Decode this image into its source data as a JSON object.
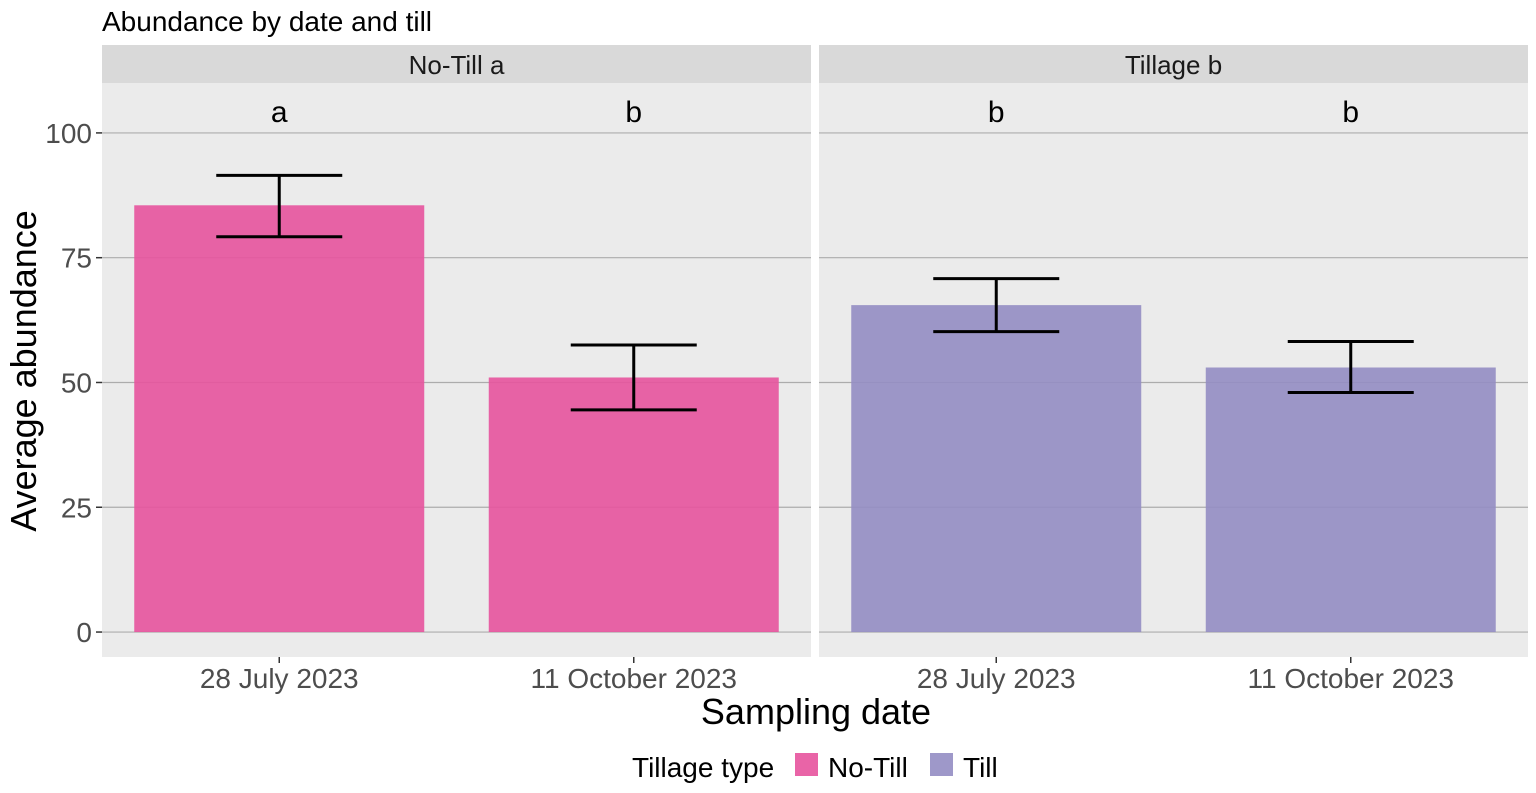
{
  "chart_data": {
    "type": "bar",
    "title": "Abundance by date and till",
    "xlabel": "Sampling date",
    "ylabel": "Average abundance",
    "ylim": [
      -5,
      110
    ],
    "yticks": [
      0,
      25,
      50,
      75,
      100
    ],
    "grid": true,
    "categories": [
      "28 July 2023",
      "11 October 2023"
    ],
    "legend": {
      "title": "Tillage type",
      "position": "bottom",
      "entries": [
        {
          "label": "No-Till",
          "color": "#E7539D"
        },
        {
          "label": "Till",
          "color": "#938DC3"
        }
      ]
    },
    "panels": [
      {
        "strip": "No-Till a",
        "series": "No-Till",
        "color": "#E7539D",
        "values": [
          85.5,
          51
        ],
        "error_low": [
          79.2,
          44.5
        ],
        "error_high": [
          91.5,
          57.5
        ],
        "letters": [
          "a",
          "b"
        ]
      },
      {
        "strip": "Tillage b",
        "series": "Till",
        "color": "#938DC3",
        "values": [
          65.5,
          53
        ],
        "error_low": [
          60.2,
          48
        ],
        "error_high": [
          70.8,
          58.2
        ],
        "letters": [
          "b",
          "b"
        ]
      }
    ]
  }
}
